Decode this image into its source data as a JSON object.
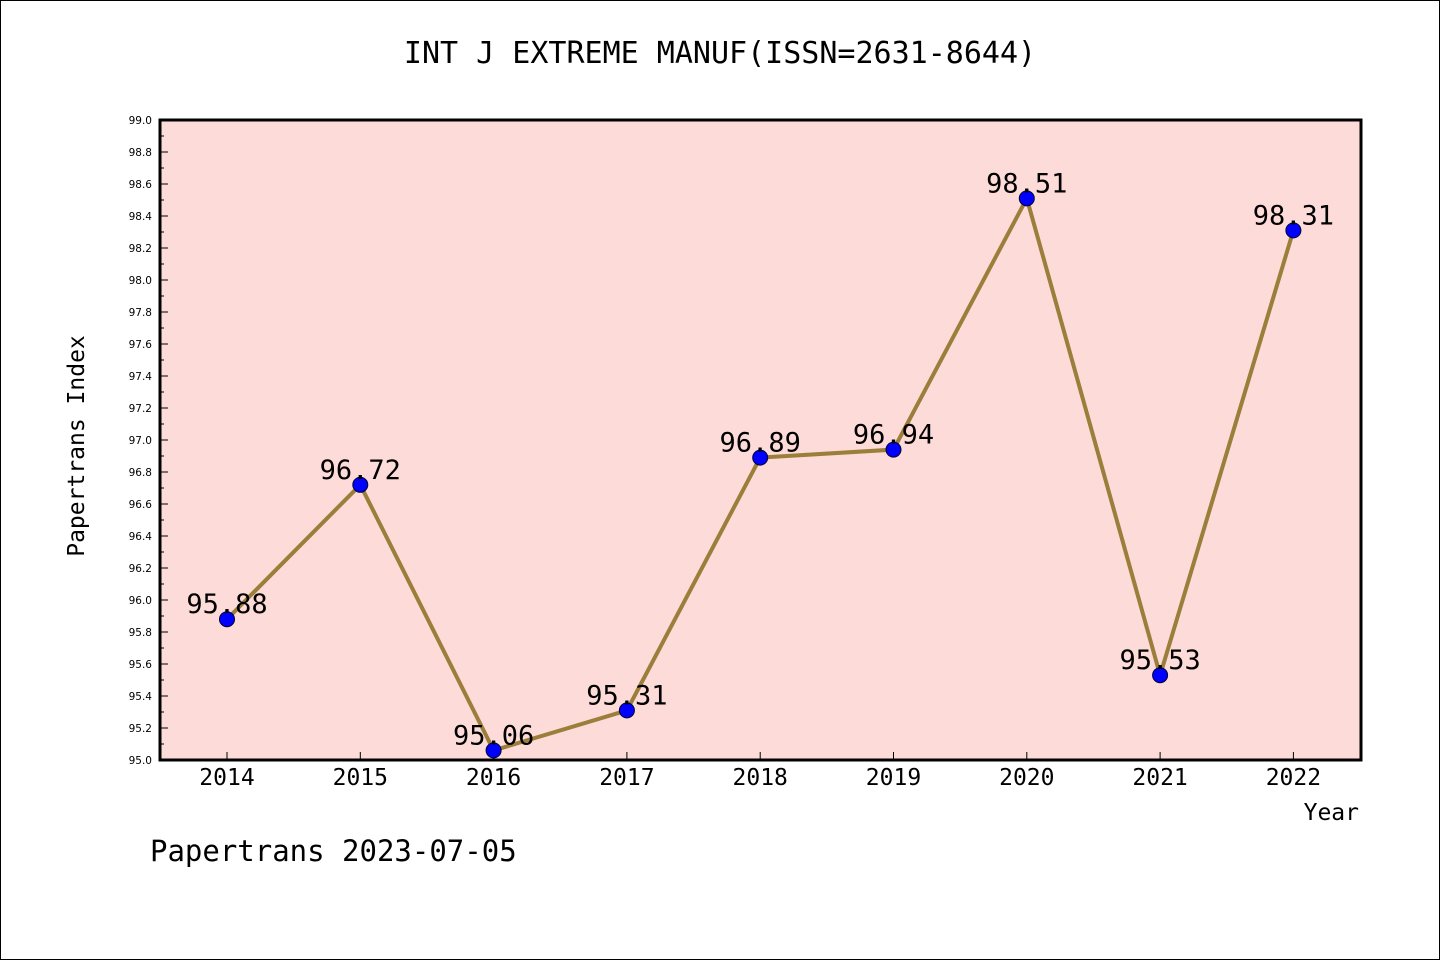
{
  "chart_data": {
    "type": "line",
    "title": "INT J EXTREME MANUF(ISSN=2631-8644)",
    "xlabel": "Year",
    "ylabel": "Papertrans Index",
    "x": [
      "2014",
      "2015",
      "2016",
      "2017",
      "2018",
      "2019",
      "2020",
      "2021",
      "2022"
    ],
    "values": [
      95.88,
      96.72,
      95.06,
      95.31,
      96.89,
      96.94,
      98.51,
      95.53,
      98.31
    ],
    "data_labels": [
      "95.88",
      "96.72",
      "95.06",
      "95.31",
      "96.89",
      "96.94",
      "98.51",
      "95.53",
      "98.31"
    ],
    "ylim": [
      95.0,
      99.0
    ],
    "yticks": [
      "95.0",
      "95.2",
      "95.4",
      "95.6",
      "95.8",
      "96.0",
      "96.2",
      "96.4",
      "96.6",
      "96.8",
      "97.0",
      "97.2",
      "97.4",
      "97.6",
      "97.8",
      "98.0",
      "98.2",
      "98.4",
      "98.6",
      "98.8",
      "99.0"
    ],
    "grid": false,
    "colors": {
      "plot_background": "#fddbd8",
      "line": "#9a7e3a",
      "marker": "#0000ff"
    }
  },
  "footer": {
    "note": "Papertrans 2023-07-05"
  }
}
